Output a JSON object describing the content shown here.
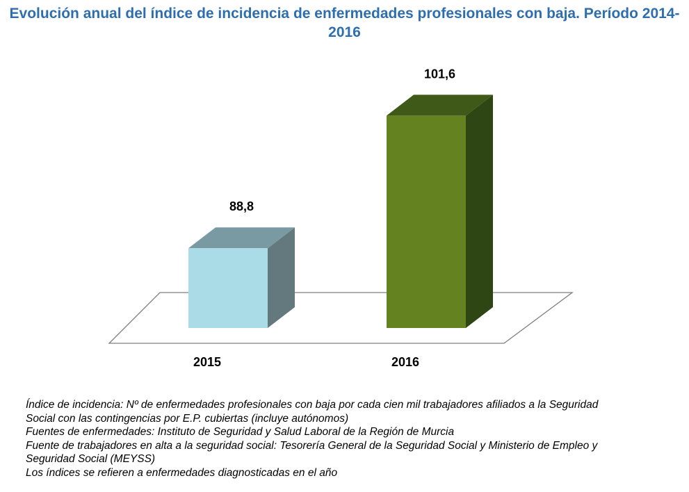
{
  "chart_data": {
    "type": "bar",
    "title": "Evolución anual del índice de incidencia de enfermedades profesionales con baja. Período 2014-2016",
    "categories": [
      "2015",
      "2016"
    ],
    "values": [
      88.8,
      101.6
    ],
    "value_labels": [
      "88,8",
      "101,6"
    ],
    "colors": [
      "#aadce8",
      "#658221"
    ],
    "side_colors": [
      "#63797e",
      "#2e4613"
    ],
    "top_colors": [
      "#7a9aa3",
      "#3e5918"
    ],
    "xlabel": "",
    "ylabel": "",
    "ylim": [
      81.1,
      108
    ],
    "grid": false,
    "legend": "none",
    "style": "3d"
  },
  "notes": [
    "Índice de incidencia: Nº de enfermedades profesionales con baja por cada cien mil trabajadores afiliados a la Seguridad",
    "Social con las contingencias por E.P. cubiertas (incluye autónomos)",
    "Fuentes de enfermedades: Instituto de Seguridad y Salud Laboral de la Región de Murcia",
    "Fuente de trabajadores en alta a la seguridad social: Tesorería General de la Seguridad Social y Ministerio de Empleo y",
    "Seguridad Social (MEYSS)",
    "Los índices se refieren a enfermedades diagnosticadas en el año"
  ]
}
